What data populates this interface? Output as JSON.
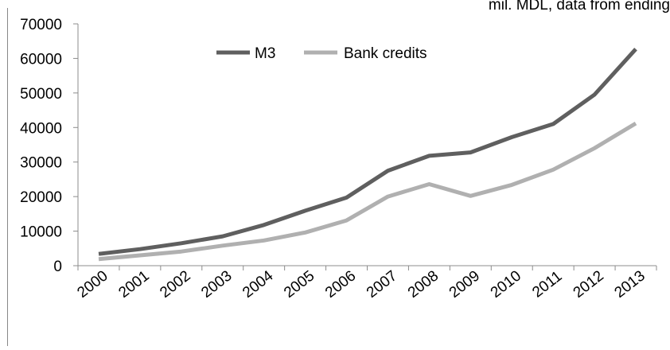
{
  "note": "mil. MDL, data from ending",
  "chart_data": {
    "type": "line",
    "categories": [
      "2000",
      "2001",
      "2002",
      "2003",
      "2004",
      "2005",
      "2006",
      "2007",
      "2008",
      "2009",
      "2010",
      "2011",
      "2012",
      "2013"
    ],
    "series": [
      {
        "name": "M3",
        "color": "#5f5f5f",
        "values": [
          3400,
          4800,
          6500,
          8500,
          11800,
          15900,
          19700,
          27500,
          31800,
          32800,
          37200,
          41000,
          49500,
          62700
        ]
      },
      {
        "name": "Bank credits",
        "color": "#b0b0b0",
        "values": [
          1900,
          3000,
          4100,
          5800,
          7300,
          9600,
          13100,
          20000,
          23600,
          20200,
          23400,
          27800,
          34000,
          41200
        ]
      }
    ],
    "ylim": [
      0,
      70000
    ],
    "yticks": [
      0,
      10000,
      20000,
      30000,
      40000,
      50000,
      60000,
      70000
    ],
    "grid": false,
    "legend": "top-center"
  }
}
